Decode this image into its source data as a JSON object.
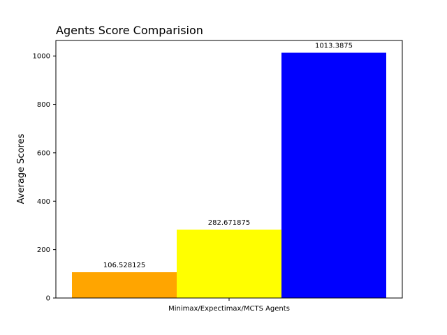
{
  "chart_data": {
    "type": "bar",
    "title": "Agents Score Comparision",
    "xlabel": "",
    "ylabel": "Average Scores",
    "category_label": "Minimax/Expectimax/MCTS Agents",
    "ylim": [
      0,
      1064
    ],
    "yticks": [
      0,
      200,
      400,
      600,
      800,
      1000
    ],
    "grid": false,
    "legend": "none",
    "series": [
      {
        "value": 106.528125,
        "label": "106.528125",
        "color": "#FFA500"
      },
      {
        "value": 282.671875,
        "label": "282.671875",
        "color": "#FFFF00"
      },
      {
        "value": 1013.3875,
        "label": "1013.3875",
        "color": "#0000FF"
      }
    ]
  }
}
